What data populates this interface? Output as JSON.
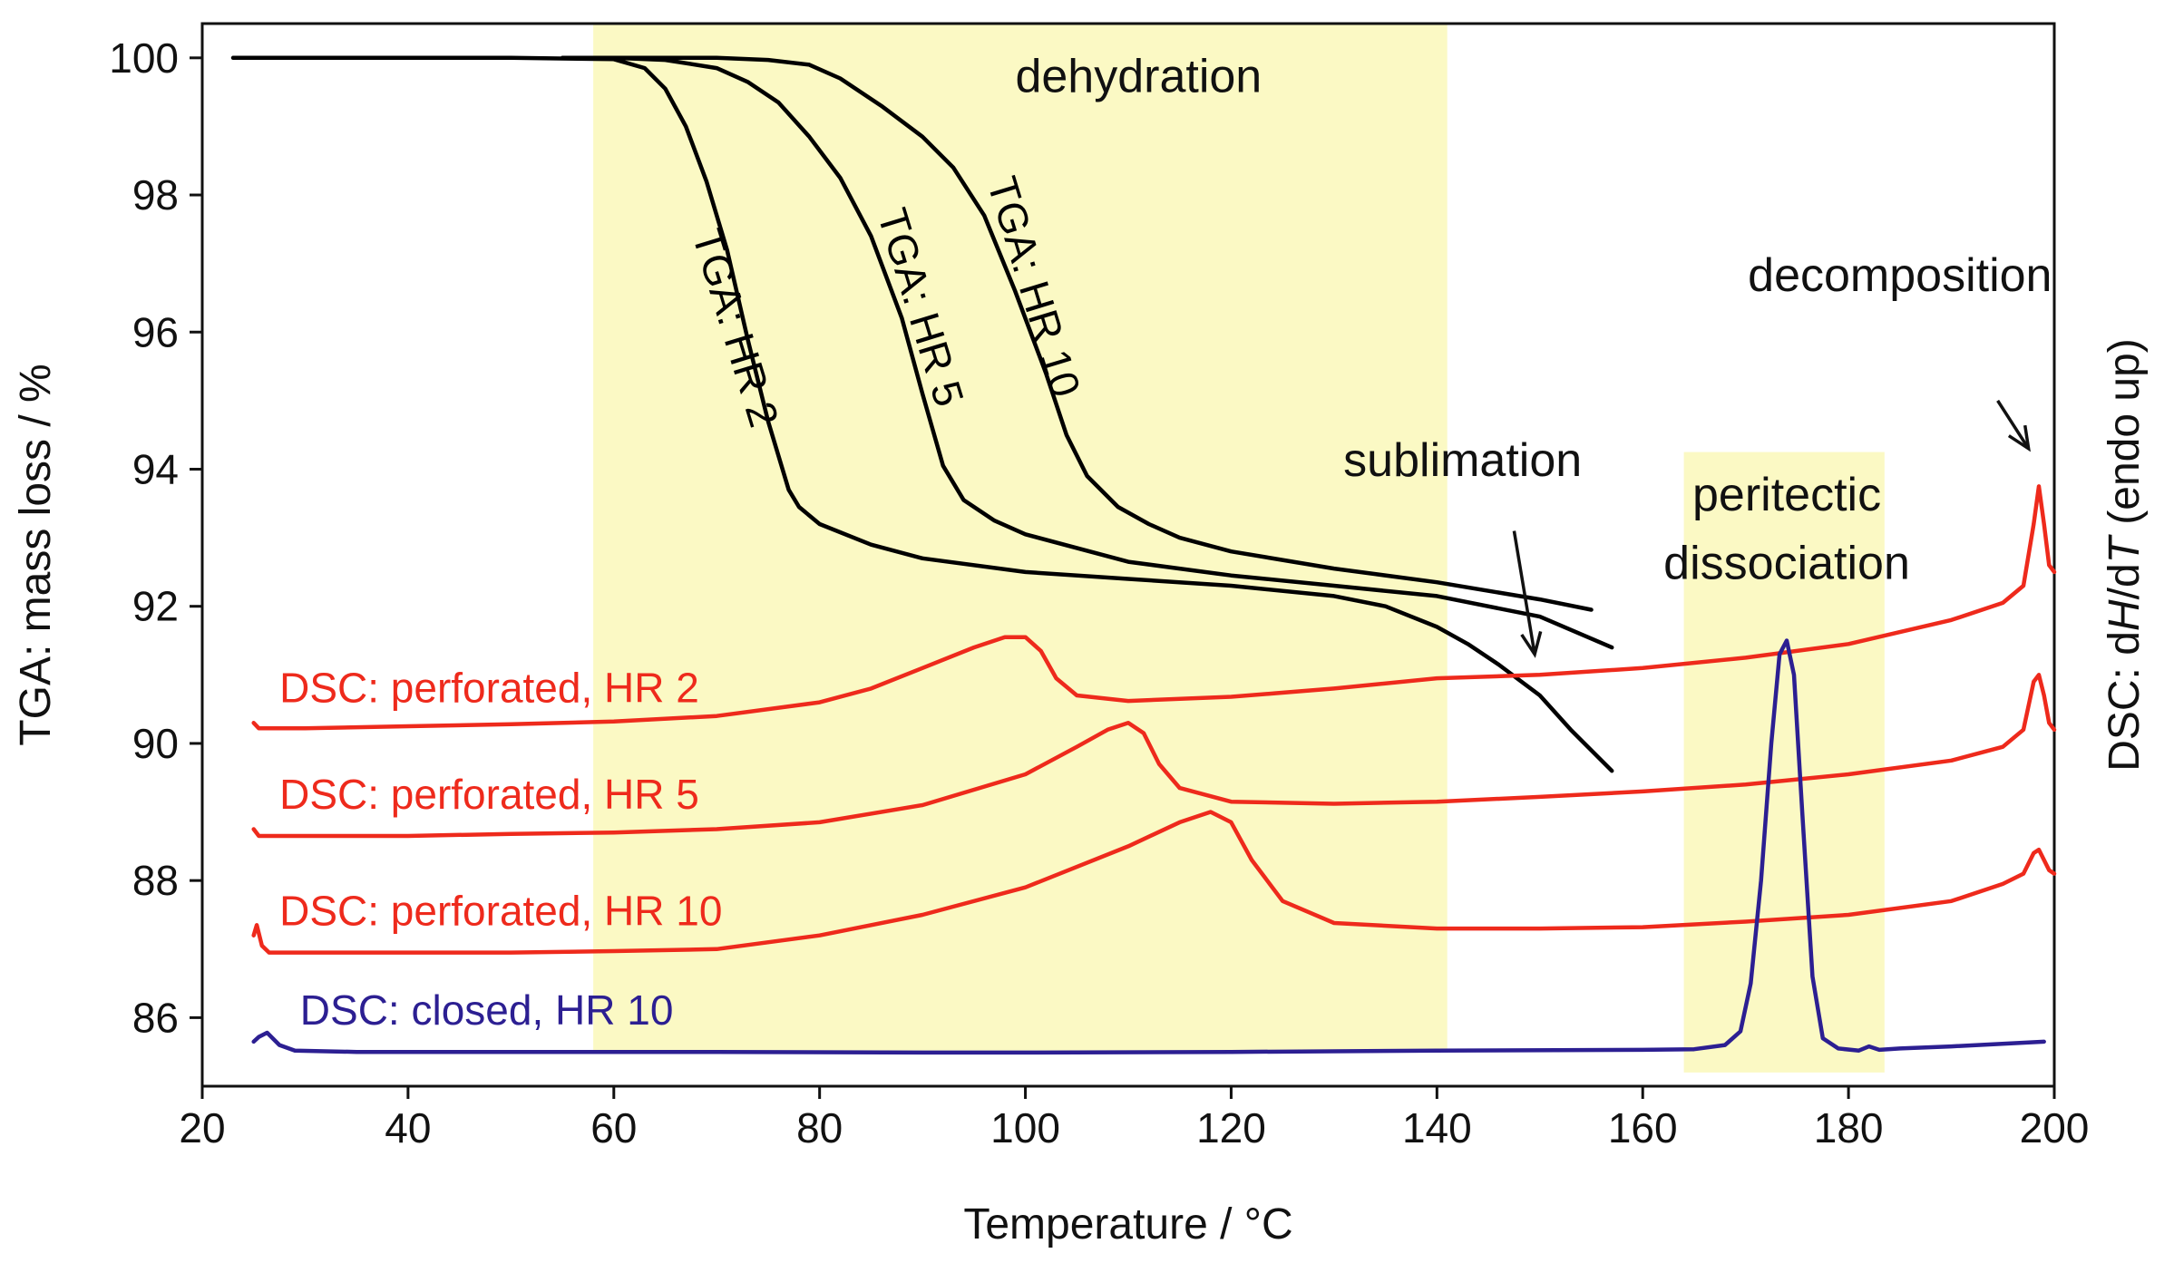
{
  "chart_data": {
    "type": "line",
    "title": "",
    "xlabel": "Temperature / °C",
    "ylabel_left": "TGA: mass loss / %",
    "ylabel_right_parts": [
      "DSC: d",
      "H",
      "/d",
      "T",
      " (endo up)"
    ],
    "xlim": [
      20,
      200
    ],
    "ylim": [
      85,
      100.5
    ],
    "x_ticks": [
      20,
      40,
      60,
      80,
      100,
      120,
      140,
      160,
      180,
      200
    ],
    "y_ticks": [
      86,
      88,
      90,
      92,
      94,
      96,
      98,
      100
    ],
    "shaded_regions": [
      {
        "name": "dehydration",
        "x": [
          58,
          141
        ],
        "y": [
          85.5,
          100.5
        ],
        "color": "#fbf9c4"
      },
      {
        "name": "peritectic dissociation",
        "x": [
          164,
          183.5
        ],
        "y": [
          85.2,
          94.25
        ],
        "color": "#fbf9c4"
      }
    ],
    "annotations": [
      {
        "text": "dehydration",
        "x": 111,
        "y": 99.5
      },
      {
        "text": "sublimation",
        "x": 142.5,
        "y": 93.9
      },
      {
        "text": "peritectic",
        "x": 174,
        "y": 93.4
      },
      {
        "text": "dissociation",
        "x": 174,
        "y": 92.4
      },
      {
        "text": "decomposition",
        "x": 185,
        "y": 96.6
      }
    ],
    "arrows": [
      {
        "name": "sublimation-arrow",
        "from": [
          147.5,
          93.1
        ],
        "to": [
          149.5,
          91.3
        ]
      },
      {
        "name": "decomposition-arrow",
        "from": [
          194.5,
          95.0
        ],
        "to": [
          197.5,
          94.3
        ]
      }
    ],
    "series": [
      {
        "name": "TGA: HR 2",
        "group": "tga",
        "color": "#000000",
        "label": {
          "text": "TGA: HR 2",
          "x": 70.5,
          "y": 96.0,
          "angle": 73
        },
        "x": [
          23,
          30,
          40,
          50,
          60,
          63,
          65,
          67,
          69,
          71,
          73,
          75,
          77,
          78,
          80,
          85,
          90,
          100,
          110,
          120,
          130,
          135,
          140,
          143,
          146,
          150,
          153,
          157
        ],
        "y": [
          100.0,
          100.0,
          100.0,
          100.0,
          99.98,
          99.85,
          99.55,
          99.0,
          98.2,
          97.2,
          95.9,
          94.7,
          93.7,
          93.45,
          93.2,
          92.9,
          92.7,
          92.5,
          92.4,
          92.3,
          92.15,
          92.0,
          91.7,
          91.45,
          91.15,
          90.7,
          90.2,
          89.6
        ]
      },
      {
        "name": "TGA: HR 5",
        "group": "tga",
        "color": "#000000",
        "label": {
          "text": "TGA: HR 5",
          "x": 88.5,
          "y": 96.3,
          "angle": 73
        },
        "x": [
          55,
          60,
          65,
          70,
          73,
          76,
          79,
          82,
          85,
          88,
          90,
          92,
          94,
          97,
          100,
          110,
          120,
          130,
          140,
          150,
          157
        ],
        "y": [
          100.0,
          100.0,
          99.97,
          99.85,
          99.65,
          99.35,
          98.85,
          98.25,
          97.4,
          96.2,
          95.1,
          94.05,
          93.55,
          93.25,
          93.05,
          92.65,
          92.45,
          92.3,
          92.15,
          91.85,
          91.4
        ]
      },
      {
        "name": "TGA: HR 10",
        "group": "tga",
        "color": "#000000",
        "label": {
          "text": "TGA: HR 10",
          "x": 99.5,
          "y": 96.6,
          "angle": 73
        },
        "x": [
          60,
          70,
          75,
          79,
          82,
          86,
          90,
          93,
          96,
          99,
          102,
          104,
          106,
          109,
          112,
          115,
          120,
          130,
          140,
          150,
          155
        ],
        "y": [
          100.0,
          100.0,
          99.97,
          99.9,
          99.7,
          99.3,
          98.85,
          98.4,
          97.7,
          96.6,
          95.4,
          94.5,
          93.9,
          93.45,
          93.2,
          93.0,
          92.8,
          92.55,
          92.35,
          92.1,
          91.95
        ]
      },
      {
        "name": "DSC: perforated, HR 2",
        "group": "dsc",
        "color": "#ee2a1c",
        "label": {
          "text": "DSC: perforated, HR 2",
          "x": 27.5,
          "y": 90.6,
          "angle": 0
        },
        "x": [
          25,
          25.5,
          30,
          40,
          50,
          60,
          70,
          80,
          85,
          90,
          95,
          98,
          100,
          101.5,
          103,
          105,
          110,
          120,
          130,
          140,
          150,
          160,
          170,
          180,
          190,
          195,
          197,
          198,
          198.5,
          199,
          199.5,
          200
        ],
        "y": [
          90.3,
          90.22,
          90.22,
          90.25,
          90.28,
          90.32,
          90.4,
          90.6,
          90.8,
          91.1,
          91.4,
          91.55,
          91.55,
          91.35,
          90.95,
          90.7,
          90.62,
          90.68,
          90.8,
          90.95,
          91.0,
          91.1,
          91.25,
          91.45,
          91.8,
          92.05,
          92.3,
          93.2,
          93.75,
          93.2,
          92.6,
          92.5
        ]
      },
      {
        "name": "DSC: perforated, HR 5",
        "group": "dsc",
        "color": "#ee2a1c",
        "label": {
          "text": "DSC: perforated, HR 5",
          "x": 27.5,
          "y": 89.05,
          "angle": 0
        },
        "x": [
          25,
          25.5,
          30,
          40,
          50,
          60,
          70,
          80,
          90,
          100,
          105,
          108,
          110,
          111.5,
          113,
          115,
          120,
          130,
          140,
          150,
          160,
          170,
          180,
          190,
          195,
          197,
          198,
          198.5,
          199,
          199.5,
          200
        ],
        "y": [
          88.75,
          88.65,
          88.65,
          88.65,
          88.68,
          88.7,
          88.75,
          88.85,
          89.1,
          89.55,
          89.95,
          90.2,
          90.3,
          90.15,
          89.7,
          89.35,
          89.15,
          89.12,
          89.15,
          89.22,
          89.3,
          89.4,
          89.55,
          89.75,
          89.95,
          90.2,
          90.9,
          91.0,
          90.7,
          90.3,
          90.2
        ]
      },
      {
        "name": "DSC: perforated, HR 10",
        "group": "dsc",
        "color": "#ee2a1c",
        "label": {
          "text": "DSC: perforated, HR 10",
          "x": 27.5,
          "y": 87.35,
          "angle": 0
        },
        "x": [
          25,
          25.3,
          25.8,
          26.5,
          30,
          40,
          50,
          60,
          70,
          80,
          90,
          100,
          110,
          115,
          118,
          120,
          122,
          125,
          130,
          140,
          150,
          160,
          170,
          180,
          190,
          195,
          197,
          198,
          198.5,
          199,
          199.5,
          200
        ],
        "y": [
          87.2,
          87.35,
          87.05,
          86.95,
          86.95,
          86.95,
          86.95,
          86.97,
          87.0,
          87.2,
          87.5,
          87.9,
          88.5,
          88.85,
          89.0,
          88.85,
          88.3,
          87.7,
          87.38,
          87.3,
          87.3,
          87.32,
          87.4,
          87.5,
          87.7,
          87.95,
          88.1,
          88.4,
          88.45,
          88.3,
          88.15,
          88.1
        ]
      },
      {
        "name": "DSC: closed, HR 10",
        "group": "dsc",
        "color": "#2c1f92",
        "label": {
          "text": "DSC: closed, HR 10",
          "x": 29.5,
          "y": 85.9,
          "angle": 0
        },
        "x": [
          25,
          25.5,
          26.3,
          27.5,
          29,
          35,
          50,
          70,
          90,
          100,
          120,
          140,
          160,
          165,
          168,
          169.5,
          170.5,
          171.5,
          172.5,
          173.3,
          174,
          174.7,
          175.5,
          176.5,
          177.5,
          179,
          181,
          182,
          183,
          185,
          190,
          199
        ],
        "y": [
          85.65,
          85.72,
          85.78,
          85.6,
          85.52,
          85.5,
          85.5,
          85.5,
          85.49,
          85.49,
          85.5,
          85.52,
          85.53,
          85.54,
          85.6,
          85.8,
          86.5,
          88.0,
          90.0,
          91.3,
          91.5,
          91.0,
          89.0,
          86.6,
          85.7,
          85.55,
          85.52,
          85.58,
          85.53,
          85.55,
          85.58,
          85.65
        ]
      }
    ]
  }
}
